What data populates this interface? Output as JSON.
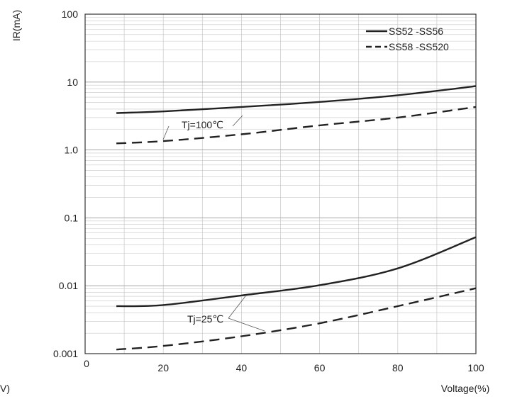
{
  "chart_data": {
    "type": "line",
    "xlabel": "Voltage(%)",
    "ylabel": "IR(mA)",
    "corner_fragment": "V)",
    "xlim": [
      0,
      100
    ],
    "ylim": [
      0.001,
      100
    ],
    "yscale": "log",
    "grid": true,
    "legend_position": "top-right",
    "x_ticks": [
      "0",
      "20",
      "40",
      "60",
      "80",
      "100"
    ],
    "y_ticks": [
      "100",
      "10",
      "1.0",
      "0.1",
      "0.01",
      "0.001"
    ],
    "series": [
      {
        "name": "SS52 -SS56",
        "style": "solid",
        "group": "Tj=100℃",
        "x": [
          8,
          20,
          40,
          60,
          80,
          100
        ],
        "y": [
          3.5,
          3.7,
          4.3,
          5.1,
          6.4,
          8.7
        ]
      },
      {
        "name": "SS58 -SS520",
        "style": "dashed",
        "group": "Tj=100℃",
        "x": [
          8,
          20,
          40,
          60,
          80,
          100
        ],
        "y": [
          1.25,
          1.35,
          1.7,
          2.3,
          3.0,
          4.3
        ]
      },
      {
        "name": "SS52 -SS56",
        "style": "solid",
        "group": "Tj=25℃",
        "x": [
          8,
          20,
          40,
          60,
          80,
          100
        ],
        "y": [
          0.005,
          0.0052,
          0.0072,
          0.0102,
          0.018,
          0.052
        ]
      },
      {
        "name": "SS58 -SS520",
        "style": "dashed",
        "group": "Tj=25℃",
        "x": [
          8,
          20,
          40,
          60,
          80,
          100
        ],
        "y": [
          0.00115,
          0.0013,
          0.0018,
          0.0028,
          0.005,
          0.0092
        ]
      }
    ],
    "annotations": [
      {
        "text": "Tj=100℃",
        "targets": "upper curves"
      },
      {
        "text": "Tj=25℃",
        "targets": "lower curves"
      }
    ],
    "colors": {
      "line": "#222222",
      "grid": "#c8c8c8",
      "frame": "#333333"
    }
  }
}
